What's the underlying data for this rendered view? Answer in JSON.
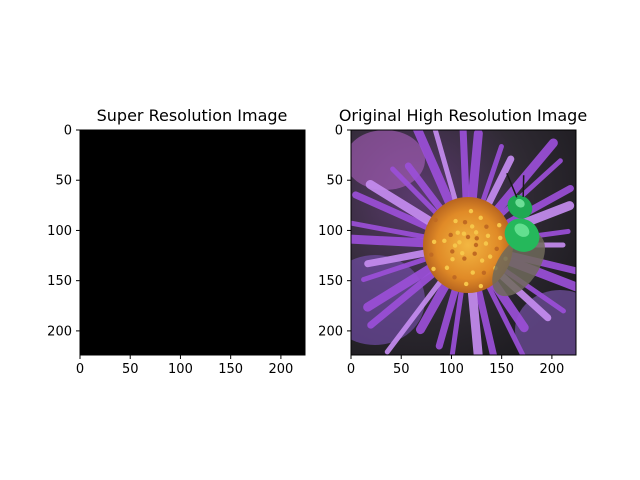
{
  "chart_data": [
    {
      "type": "image",
      "title": "Super Resolution Image",
      "image_size": [
        224,
        224
      ],
      "content": "solid-black",
      "x_ticks": [
        0,
        50,
        100,
        150,
        200
      ],
      "y_ticks": [
        0,
        50,
        100,
        150,
        200
      ],
      "x_tick_labels": [
        "0",
        "50",
        "100",
        "150",
        "200"
      ],
      "y_tick_labels": [
        "0",
        "50",
        "100",
        "150",
        "200"
      ],
      "xlim": [
        0,
        224
      ],
      "ylim": [
        224,
        0
      ],
      "colors": {
        "fill": "#000000"
      }
    },
    {
      "type": "image",
      "title": "Original High Resolution Image",
      "image_size": [
        224,
        224
      ],
      "content": "photo-green-bee-on-purple-aster",
      "x_ticks": [
        0,
        50,
        100,
        150,
        200
      ],
      "y_ticks": [
        0,
        50,
        100,
        150,
        200
      ],
      "x_tick_labels": [
        "0",
        "50",
        "100",
        "150",
        "200"
      ],
      "y_tick_labels": [
        "0",
        "50",
        "100",
        "150",
        "200"
      ],
      "xlim": [
        0,
        224
      ],
      "ylim": [
        224,
        0
      ],
      "colors": {
        "petal": "#9b4fd8",
        "petal_light": "#c58cf0",
        "center": "#e8952a",
        "bee": "#1fb85a",
        "background": "#3a3a3a"
      }
    }
  ]
}
